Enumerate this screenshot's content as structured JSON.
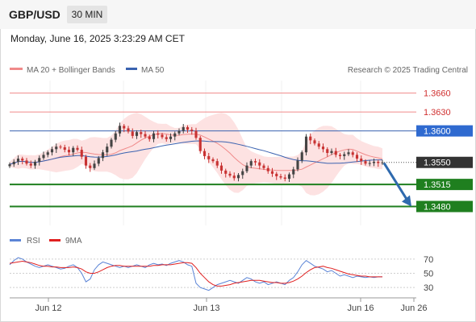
{
  "header": {
    "symbol": "GBP/USD",
    "interval": "30 MIN",
    "datetime": "Monday, June 16, 2025 3:23:29 AM CET"
  },
  "legend": {
    "ma20": "MA 20 + Bollinger Bands",
    "ma50": "MA 50",
    "source": "Research © 2025 Trading Central"
  },
  "colors": {
    "ma20": "#f08a8a",
    "ma50": "#3a62b0",
    "support": "#1f7f1f",
    "price_box": "#333333",
    "bollinger_fill": "#fde2e2",
    "up_candle": "#444444",
    "down_candle": "#c83232",
    "arrow": "#2f6aae",
    "rsi": "#5b84d6",
    "rsi_ma": "#e02020"
  },
  "chart_data": [
    {
      "type": "candlestick",
      "ylim": [
        1.345,
        1.368
      ],
      "grid": true,
      "x_ticks": [
        "Jun 12",
        "Jun 13",
        "Jun 16",
        "Jun 26"
      ],
      "current_price": "1.3550",
      "levels": [
        {
          "label": "1.3660",
          "value": 1.366,
          "kind": "resistance"
        },
        {
          "label": "1.3630",
          "value": 1.363,
          "kind": "resistance"
        },
        {
          "label": "1.3600",
          "value": 1.36,
          "kind": "pivot"
        },
        {
          "label": "1.3515",
          "value": 1.3515,
          "kind": "support"
        },
        {
          "label": "1.3480",
          "value": 1.348,
          "kind": "support"
        }
      ],
      "forecast_arrow": {
        "from": 1.3549,
        "to": 1.348
      },
      "close_path": [
        1.3547,
        1.3551,
        1.3556,
        1.3553,
        1.3548,
        1.3545,
        1.3551,
        1.3557,
        1.3562,
        1.3566,
        1.3571,
        1.3575,
        1.3574,
        1.357,
        1.3566,
        1.3573,
        1.357,
        1.3559,
        1.3545,
        1.3541,
        1.3548,
        1.3557,
        1.3566,
        1.3575,
        1.3586,
        1.3596,
        1.3608,
        1.3604,
        1.3599,
        1.3592,
        1.3598,
        1.3595,
        1.3591,
        1.3587,
        1.3596,
        1.3594,
        1.359,
        1.3587,
        1.3591,
        1.3596,
        1.36,
        1.3606,
        1.3602,
        1.36,
        1.3589,
        1.3568,
        1.356,
        1.3555,
        1.3552,
        1.3545,
        1.3537,
        1.3532,
        1.3529,
        1.3525,
        1.353,
        1.3536,
        1.3545,
        1.3552,
        1.355,
        1.3545,
        1.3541,
        1.3536,
        1.3532,
        1.3528,
        1.3526,
        1.3524,
        1.3531,
        1.3539,
        1.3553,
        1.3566,
        1.3591,
        1.3585,
        1.358,
        1.3575,
        1.3571,
        1.3565,
        1.3568,
        1.3562,
        1.356,
        1.3563,
        1.3566,
        1.3562,
        1.3556,
        1.3552,
        1.3548,
        1.3549,
        1.3551,
        1.3549,
        1.355
      ]
    },
    {
      "type": "line",
      "legend": [
        "RSI",
        "9MA"
      ],
      "y_ticks": [
        30,
        50,
        70
      ],
      "ylim": [
        20,
        80
      ],
      "rsi": [
        62,
        68,
        72,
        70,
        66,
        63,
        60,
        58,
        60,
        62,
        60,
        58,
        56,
        57,
        60,
        62,
        58,
        50,
        38,
        42,
        55,
        62,
        66,
        64,
        62,
        60,
        58,
        60,
        58,
        60,
        62,
        60,
        58,
        62,
        64,
        62,
        63,
        61,
        64,
        66,
        68,
        66,
        62,
        60,
        36,
        30,
        28,
        26,
        30,
        34,
        36,
        38,
        40,
        38,
        36,
        40,
        44,
        42,
        38,
        36,
        38,
        34,
        36,
        38,
        36,
        34,
        40,
        44,
        52,
        62,
        68,
        64,
        60,
        58,
        56,
        52,
        54,
        50,
        46,
        48,
        46,
        44,
        46,
        45,
        44,
        45,
        44,
        45,
        45
      ],
      "rsi_ma": [
        64,
        65,
        66,
        67,
        66,
        65,
        63,
        61,
        60,
        60,
        59,
        59,
        58,
        58,
        58,
        59,
        58,
        56,
        52,
        50,
        50,
        52,
        55,
        58,
        60,
        61,
        61,
        60,
        60,
        60,
        60,
        60,
        60,
        60,
        61,
        61,
        62,
        62,
        62,
        63,
        64,
        65,
        65,
        64,
        58,
        50,
        44,
        38,
        34,
        32,
        32,
        33,
        34,
        36,
        37,
        38,
        39,
        40,
        40,
        40,
        39,
        38,
        37,
        37,
        36,
        36,
        37,
        39,
        42,
        46,
        51,
        55,
        58,
        59,
        60,
        58,
        57,
        55,
        53,
        51,
        49,
        48,
        47,
        46,
        46,
        45,
        45,
        45,
        45
      ]
    }
  ]
}
